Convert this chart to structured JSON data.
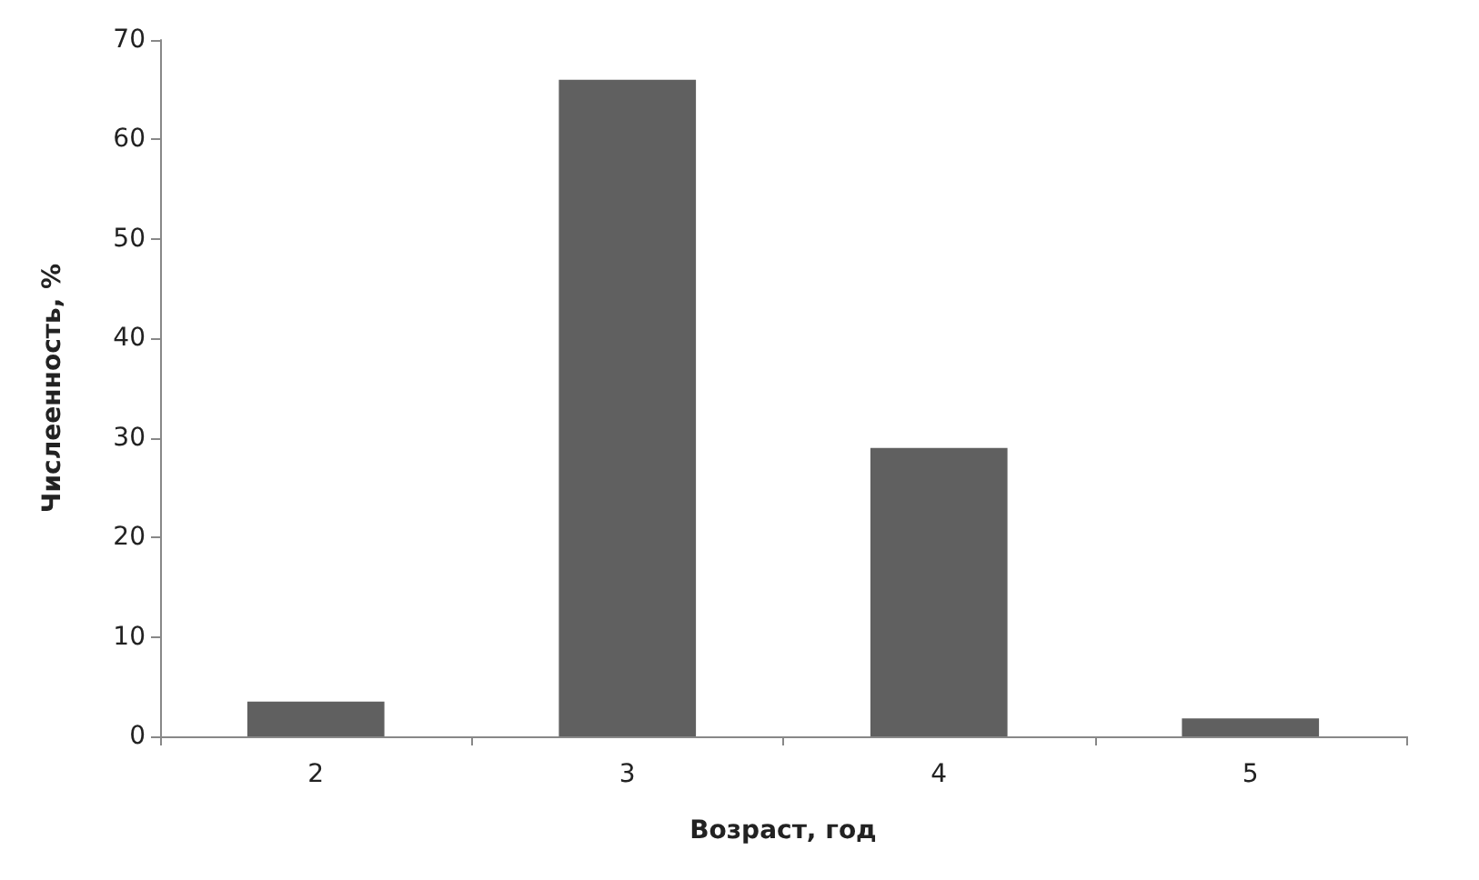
{
  "chart_data": {
    "type": "bar",
    "xlabel": "Возраст, год",
    "ylabel": "Числеенность, %",
    "categories": [
      "2",
      "3",
      "4",
      "5"
    ],
    "values": [
      3.5,
      66,
      29,
      1.8
    ],
    "color": "#606060",
    "ylim": [
      0,
      70
    ],
    "yticks": [
      0,
      10,
      20,
      30,
      40,
      50,
      60,
      70
    ],
    "grid": false
  }
}
